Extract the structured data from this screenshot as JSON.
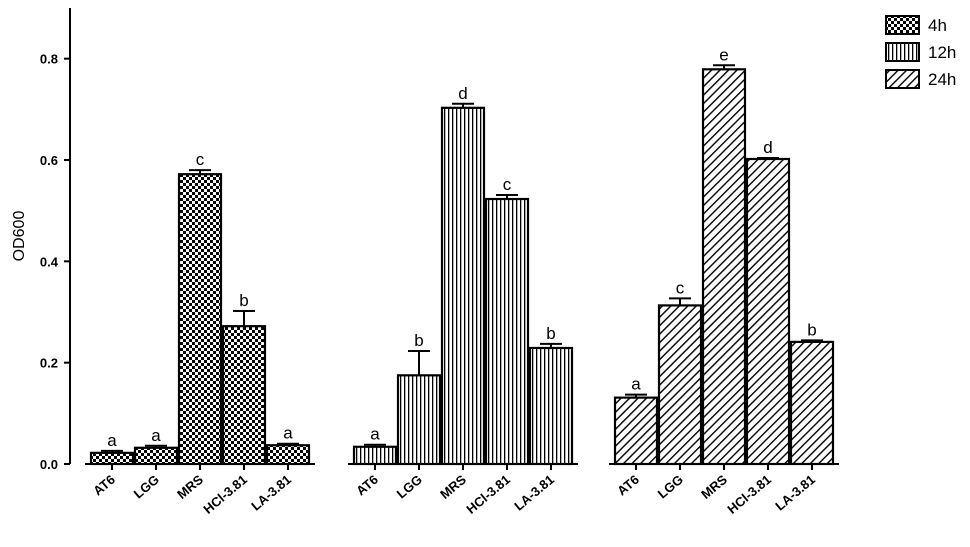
{
  "chart_data": {
    "type": "bar",
    "ylabel": "OD600",
    "xlabel": "",
    "ylim": [
      0,
      0.9
    ],
    "yticks": [
      "0.0",
      "0.2",
      "0.4",
      "0.6",
      "0.8"
    ],
    "ytick_values": [
      0,
      0.2,
      0.4,
      0.6,
      0.8
    ],
    "grid": false,
    "legend_position": "top-right",
    "groups": [
      {
        "name": "4h",
        "pattern": "checker",
        "categories": [
          "AT6",
          "LGG",
          "MRS",
          "HCl-3.81",
          "LA-3.81"
        ],
        "values": [
          0.022,
          0.032,
          0.572,
          0.272,
          0.037
        ],
        "errors": [
          0.004,
          0.004,
          0.008,
          0.03,
          0.003
        ],
        "letters": [
          "a",
          "a",
          "c",
          "b",
          "a"
        ]
      },
      {
        "name": "12h",
        "pattern": "vertical",
        "categories": [
          "AT6",
          "LGG",
          "MRS",
          "HCl-3.81",
          "LA-3.81"
        ],
        "values": [
          0.034,
          0.175,
          0.703,
          0.523,
          0.229
        ],
        "errors": [
          0.004,
          0.048,
          0.008,
          0.008,
          0.008
        ],
        "letters": [
          "a",
          "b",
          "d",
          "c",
          "b"
        ]
      },
      {
        "name": "24h",
        "pattern": "diagonal",
        "categories": [
          "AT6",
          "LGG",
          "MRS",
          "HCl-3.81",
          "LA-3.81"
        ],
        "values": [
          0.131,
          0.313,
          0.779,
          0.602,
          0.241
        ],
        "errors": [
          0.006,
          0.014,
          0.008,
          0.002,
          0.003
        ],
        "letters": [
          "a",
          "c",
          "e",
          "d",
          "b"
        ]
      }
    ],
    "legend": [
      "4h",
      "12h",
      "24h"
    ]
  }
}
